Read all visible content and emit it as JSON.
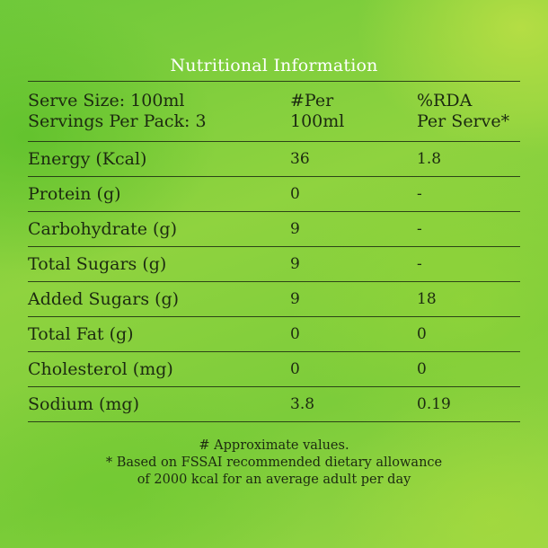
{
  "title": "Nutritional Information",
  "header": {
    "serve_size": "Serve Size: 100ml",
    "servings_per_pack": "Servings Per Pack: 3",
    "per_line1": "#Per",
    "per_line2": "100ml",
    "rda_line1": "%RDA",
    "rda_line2": "Per Serve*"
  },
  "rows": [
    {
      "nutrient": "Energy (Kcal)",
      "per_100ml": "36",
      "rda": "1.8"
    },
    {
      "nutrient": "Protein (g)",
      "per_100ml": "0",
      "rda": "-"
    },
    {
      "nutrient": "Carbohydrate (g)",
      "per_100ml": "9",
      "rda": "-"
    },
    {
      "nutrient": "Total Sugars (g)",
      "per_100ml": "9",
      "rda": "-"
    },
    {
      "nutrient": "Added Sugars (g)",
      "per_100ml": "9",
      "rda": "18"
    },
    {
      "nutrient": "Total Fat (g)",
      "per_100ml": "0",
      "rda": "0"
    },
    {
      "nutrient": "Cholesterol (mg)",
      "per_100ml": "0",
      "rda": "0"
    },
    {
      "nutrient": "Sodium (mg)",
      "per_100ml": "3.8",
      "rda": "0.19"
    }
  ],
  "footnotes": {
    "line1": "# Approximate values.",
    "line2": "* Based on FSSAI recommended dietary allowance",
    "line3": "of 2000 kcal for an average adult per day"
  },
  "colors": {
    "background": "#8fd33f",
    "title_text": "#ffffff",
    "body_text": "#1c2a10"
  }
}
